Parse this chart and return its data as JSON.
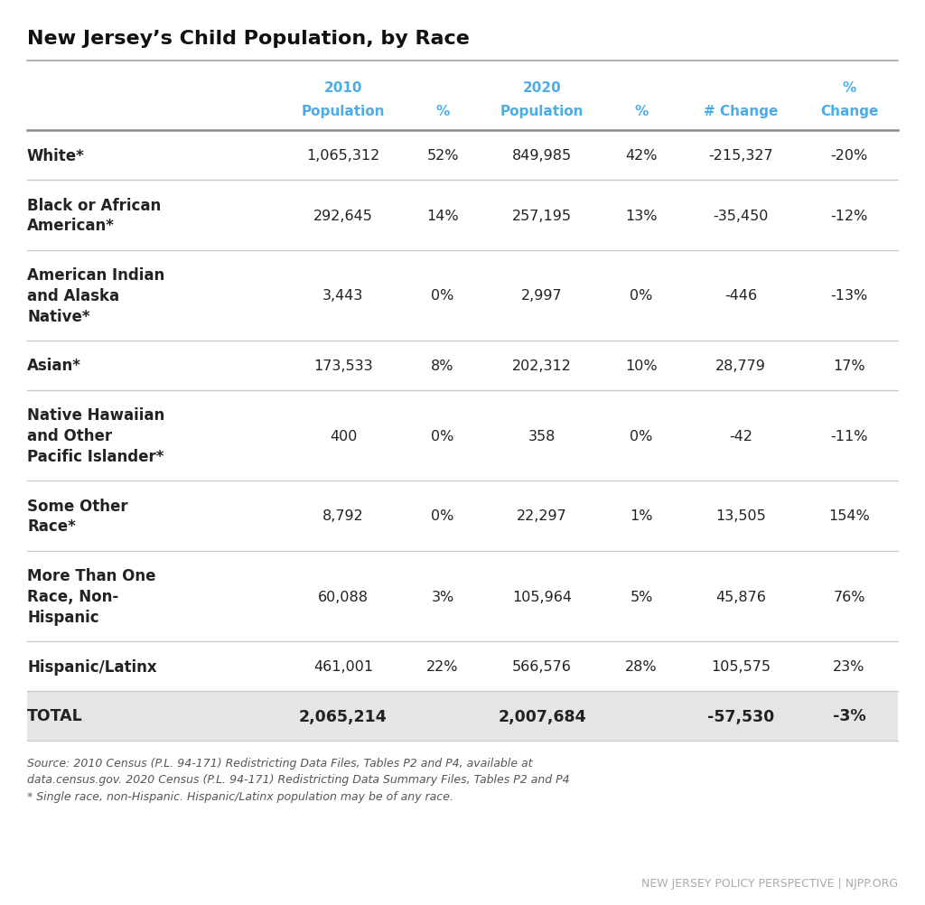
{
  "title": "New Jersey’s Child Population, by Race",
  "header_color": "#4bade8",
  "rows": [
    {
      "race": "White*",
      "pop2010": "1,065,312",
      "pct2010": "52%",
      "pop2020": "849,985",
      "pct2020": "42%",
      "num_change": "-215,327",
      "pct_change": "-20%",
      "multiline": false,
      "is_total": false
    },
    {
      "race": "Black or African\nAmerican*",
      "pop2010": "292,645",
      "pct2010": "14%",
      "pop2020": "257,195",
      "pct2020": "13%",
      "num_change": "-35,450",
      "pct_change": "-12%",
      "multiline": true,
      "is_total": false
    },
    {
      "race": "American Indian\nand Alaska\nNative*",
      "pop2010": "3,443",
      "pct2010": "0%",
      "pop2020": "2,997",
      "pct2020": "0%",
      "num_change": "-446",
      "pct_change": "-13%",
      "multiline": true,
      "is_total": false
    },
    {
      "race": "Asian*",
      "pop2010": "173,533",
      "pct2010": "8%",
      "pop2020": "202,312",
      "pct2020": "10%",
      "num_change": "28,779",
      "pct_change": "17%",
      "multiline": false,
      "is_total": false
    },
    {
      "race": "Native Hawaiian\nand Other\nPacific Islander*",
      "pop2010": "400",
      "pct2010": "0%",
      "pop2020": "358",
      "pct2020": "0%",
      "num_change": "-42",
      "pct_change": "-11%",
      "multiline": true,
      "is_total": false
    },
    {
      "race": "Some Other\nRace*",
      "pop2010": "8,792",
      "pct2010": "0%",
      "pop2020": "22,297",
      "pct2020": "1%",
      "num_change": "13,505",
      "pct_change": "154%",
      "multiline": true,
      "is_total": false
    },
    {
      "race": "More Than One\nRace, Non-\nHispanic",
      "pop2010": "60,088",
      "pct2010": "3%",
      "pop2020": "105,964",
      "pct2020": "5%",
      "num_change": "45,876",
      "pct_change": "76%",
      "multiline": true,
      "is_total": false
    },
    {
      "race": "Hispanic/Latinx",
      "pop2010": "461,001",
      "pct2010": "22%",
      "pop2020": "566,576",
      "pct2020": "28%",
      "num_change": "105,575",
      "pct_change": "23%",
      "multiline": false,
      "is_total": false
    },
    {
      "race": "TOTAL",
      "pop2010": "2,065,214",
      "pct2010": "",
      "pop2020": "2,007,684",
      "pct2020": "",
      "num_change": "-57,530",
      "pct_change": "-3%",
      "multiline": false,
      "is_total": true
    }
  ],
  "source_text": "Source: 2010 Census (P.L. 94-171) Redistricting Data Files, Tables P2 and P4, available at\ndata.census.gov. 2020 Census (P.L. 94-171) Redistricting Data Summary Files, Tables P2 and P4\n* Single race, non-Hispanic. Hispanic/Latinx population may be of any race.",
  "footer_text": "NEW JERSEY POLICY PERSPECTIVE | NJPP.ORG",
  "bg_color": "#ffffff",
  "line_color": "#c8c8c8",
  "text_color": "#222222",
  "total_bg_color": "#e5e5e5",
  "source_color": "#555555",
  "footer_color": "#aaaaaa"
}
